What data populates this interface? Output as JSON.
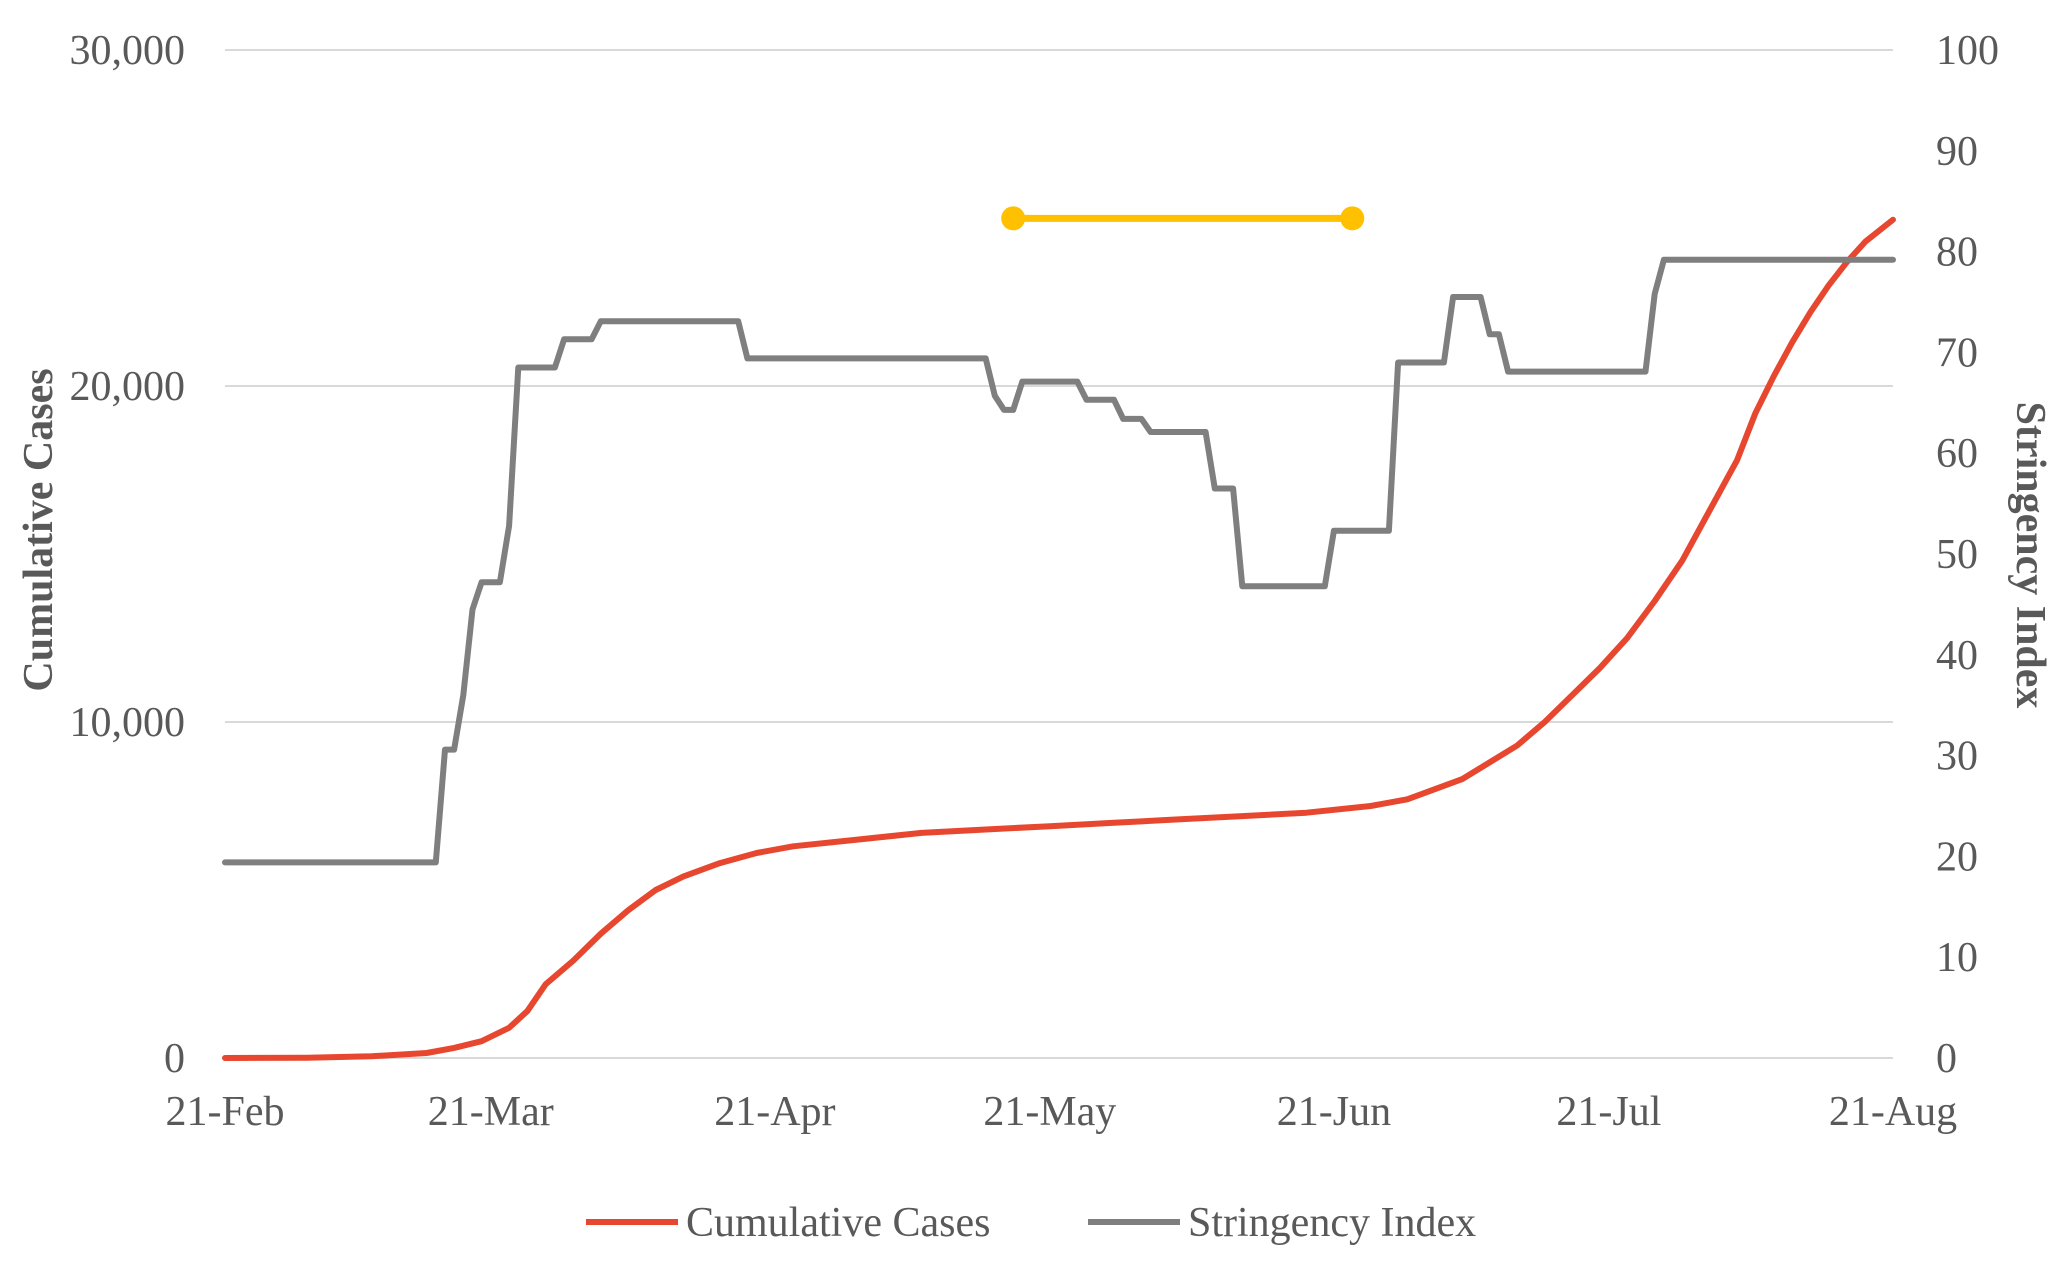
{
  "chart_data": {
    "type": "line",
    "title": "",
    "xlabel": "",
    "ylabel_left": "Cumulative Cases",
    "ylabel_right": "Stringency Index",
    "ylim_left": [
      0,
      30000
    ],
    "ylim_right": [
      0,
      100
    ],
    "xlim": [
      "2020-02-21",
      "2020-08-21"
    ],
    "x_ticks": [
      "21-Feb",
      "21-Mar",
      "21-Apr",
      "21-May",
      "21-Jun",
      "21-Jul",
      "21-Aug"
    ],
    "y_ticks_left": [
      "0",
      "10,000",
      "20,000",
      "30,000"
    ],
    "y_ticks_right": [
      "0",
      "10",
      "20",
      "30",
      "40",
      "50",
      "60",
      "70",
      "80",
      "90",
      "100"
    ],
    "grid": "horizontal, left axis",
    "legend_position": "bottom",
    "series": [
      {
        "name": "Cumulative Cases",
        "axis": "left",
        "color": "#E8472F",
        "points": [
          [
            "2020-02-21",
            0
          ],
          [
            "2020-03-01",
            10
          ],
          [
            "2020-03-08",
            50
          ],
          [
            "2020-03-14",
            150
          ],
          [
            "2020-03-17",
            300
          ],
          [
            "2020-03-20",
            500
          ],
          [
            "2020-03-23",
            900
          ],
          [
            "2020-03-25",
            1400
          ],
          [
            "2020-03-27",
            2200
          ],
          [
            "2020-03-30",
            2900
          ],
          [
            "2020-04-02",
            3700
          ],
          [
            "2020-04-05",
            4400
          ],
          [
            "2020-04-08",
            5000
          ],
          [
            "2020-04-11",
            5400
          ],
          [
            "2020-04-15",
            5800
          ],
          [
            "2020-04-19",
            6100
          ],
          [
            "2020-04-23",
            6300
          ],
          [
            "2020-04-30",
            6500
          ],
          [
            "2020-05-07",
            6700
          ],
          [
            "2020-05-14",
            6800
          ],
          [
            "2020-05-21",
            6900
          ],
          [
            "2020-05-28",
            7000
          ],
          [
            "2020-06-04",
            7100
          ],
          [
            "2020-06-11",
            7200
          ],
          [
            "2020-06-18",
            7300
          ],
          [
            "2020-06-25",
            7500
          ],
          [
            "2020-06-29",
            7700
          ],
          [
            "2020-07-02",
            8000
          ],
          [
            "2020-07-05",
            8300
          ],
          [
            "2020-07-08",
            8800
          ],
          [
            "2020-07-11",
            9300
          ],
          [
            "2020-07-14",
            10000
          ],
          [
            "2020-07-17",
            10800
          ],
          [
            "2020-07-20",
            11600
          ],
          [
            "2020-07-23",
            12500
          ],
          [
            "2020-07-26",
            13600
          ],
          [
            "2020-07-29",
            14800
          ],
          [
            "2020-08-01",
            16300
          ],
          [
            "2020-08-04",
            17800
          ],
          [
            "2020-08-06",
            19200
          ],
          [
            "2020-08-08",
            20300
          ],
          [
            "2020-08-10",
            21300
          ],
          [
            "2020-08-12",
            22200
          ],
          [
            "2020-08-14",
            23000
          ],
          [
            "2020-08-16",
            23700
          ],
          [
            "2020-08-18",
            24300
          ],
          [
            "2020-08-21",
            24950
          ]
        ]
      },
      {
        "name": "Stringency Index",
        "axis": "right",
        "color": "#7F7F7F",
        "points": [
          [
            "2020-02-21",
            19.4
          ],
          [
            "2020-03-15",
            19.4
          ],
          [
            "2020-03-16",
            30.6
          ],
          [
            "2020-03-17",
            30.6
          ],
          [
            "2020-03-18",
            36
          ],
          [
            "2020-03-19",
            44.5
          ],
          [
            "2020-03-20",
            47.2
          ],
          [
            "2020-03-22",
            47.2
          ],
          [
            "2020-03-23",
            52.8
          ],
          [
            "2020-03-24",
            68.5
          ],
          [
            "2020-03-28",
            68.5
          ],
          [
            "2020-03-29",
            71.3
          ],
          [
            "2020-04-01",
            71.3
          ],
          [
            "2020-04-02",
            73.1
          ],
          [
            "2020-04-17",
            73.1
          ],
          [
            "2020-04-18",
            69.4
          ],
          [
            "2020-05-14",
            69.4
          ],
          [
            "2020-05-15",
            65.7
          ],
          [
            "2020-05-16",
            64.3
          ],
          [
            "2020-05-17",
            64.3
          ],
          [
            "2020-05-18",
            67.1
          ],
          [
            "2020-05-24",
            67.1
          ],
          [
            "2020-05-25",
            65.3
          ],
          [
            "2020-05-28",
            65.3
          ],
          [
            "2020-05-29",
            63.4
          ],
          [
            "2020-05-31",
            63.4
          ],
          [
            "2020-06-01",
            62.1
          ],
          [
            "2020-06-07",
            62.1
          ],
          [
            "2020-06-08",
            56.5
          ],
          [
            "2020-06-10",
            56.5
          ],
          [
            "2020-06-11",
            46.8
          ],
          [
            "2020-06-20",
            46.8
          ],
          [
            "2020-06-21",
            52.3
          ],
          [
            "2020-06-27",
            52.3
          ],
          [
            "2020-06-28",
            69
          ],
          [
            "2020-07-03",
            69
          ],
          [
            "2020-07-04",
            75.5
          ],
          [
            "2020-07-07",
            75.5
          ],
          [
            "2020-07-08",
            71.8
          ],
          [
            "2020-07-09",
            71.8
          ],
          [
            "2020-07-10",
            68.1
          ],
          [
            "2020-07-25",
            68.1
          ],
          [
            "2020-07-26",
            75.8
          ],
          [
            "2020-07-27",
            79.2
          ],
          [
            "2020-08-21",
            79.2
          ]
        ]
      }
    ],
    "annotations": [
      {
        "type": "bracket",
        "color": "#FFC000",
        "from": "2020-05-17",
        "to": "2020-06-23",
        "axis": "right",
        "value": 83.3
      }
    ]
  }
}
